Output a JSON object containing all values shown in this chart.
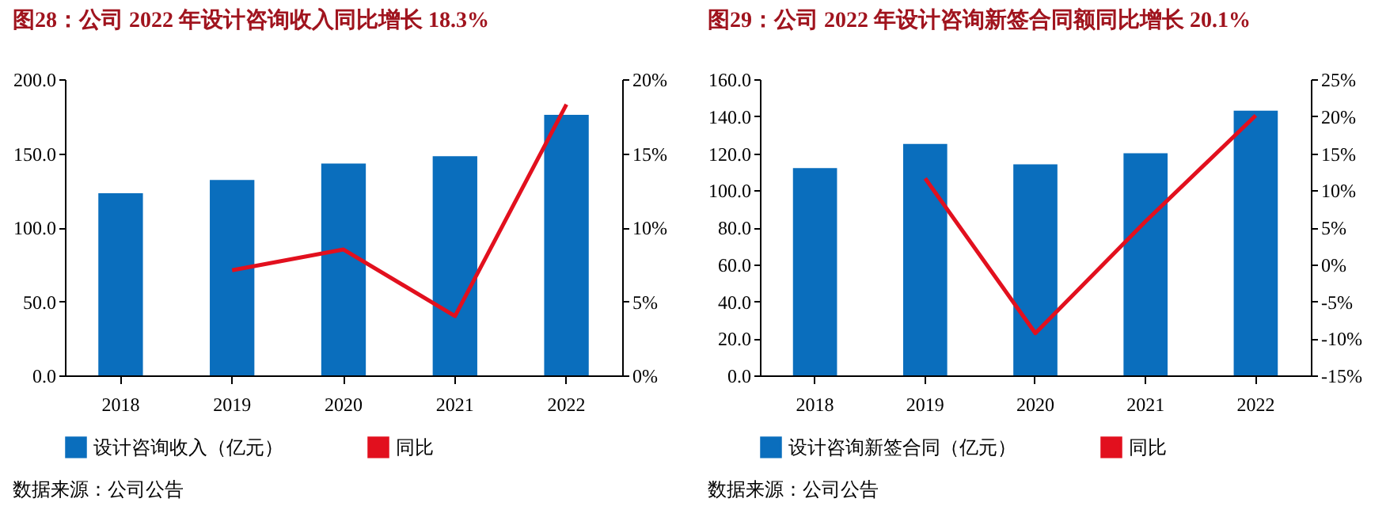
{
  "chart_data": [
    {
      "type": "bar",
      "title": "图28：公司 2022 年设计咨询收入同比增长 18.3%",
      "categories": [
        "2018",
        "2019",
        "2020",
        "2021",
        "2022"
      ],
      "series": [
        {
          "name": "设计咨询收入（亿元）",
          "color": "#0a6ebd",
          "values": [
            123,
            132,
            143,
            148,
            176
          ]
        },
        {
          "name": "同比",
          "type": "line",
          "axis": "y2",
          "color": "#e2101e",
          "values": [
            null,
            7.1,
            8.5,
            4.0,
            18.3
          ]
        }
      ],
      "ylim": [
        0,
        200
      ],
      "yticks": [
        {
          "value": 0,
          "label": "0.0"
        },
        {
          "value": 50,
          "label": "50.0"
        },
        {
          "value": 100,
          "label": "100.0"
        },
        {
          "value": 150,
          "label": "150.0"
        },
        {
          "value": 200,
          "label": "200.0"
        }
      ],
      "y2lim": [
        0,
        20
      ],
      "y2ticks": [
        {
          "value": 0,
          "label": "0%"
        },
        {
          "value": 5,
          "label": "5%"
        },
        {
          "value": 10,
          "label": "10%"
        },
        {
          "value": 15,
          "label": "15%"
        },
        {
          "value": 20,
          "label": "20%"
        }
      ],
      "legend": "bottom",
      "annotations": [
        "数据来源：公司公告"
      ]
    },
    {
      "type": "bar",
      "title": "图29：公司 2022 年设计咨询新签合同额同比增长 20.1%",
      "categories": [
        "2018",
        "2019",
        "2020",
        "2021",
        "2022"
      ],
      "series": [
        {
          "name": "设计咨询新签合同（亿元）",
          "color": "#0a6ebd",
          "values": [
            112,
            125,
            114,
            120,
            143
          ]
        },
        {
          "name": "同比",
          "type": "line",
          "axis": "y2",
          "color": "#e2101e",
          "values": [
            null,
            11.6,
            -9.3,
            5.8,
            20.1
          ]
        }
      ],
      "ylim": [
        0,
        160
      ],
      "yticks": [
        {
          "value": 0,
          "label": "0.0"
        },
        {
          "value": 20,
          "label": "20.0"
        },
        {
          "value": 40,
          "label": "40.0"
        },
        {
          "value": 60,
          "label": "60.0"
        },
        {
          "value": 80,
          "label": "80.0"
        },
        {
          "value": 100,
          "label": "100.0"
        },
        {
          "value": 120,
          "label": "120.0"
        },
        {
          "value": 140,
          "label": "140.0"
        },
        {
          "value": 160,
          "label": "160.0"
        }
      ],
      "y2lim": [
        -15,
        25
      ],
      "y2ticks": [
        {
          "value": -15,
          "label": "-15%"
        },
        {
          "value": -10,
          "label": "-10%"
        },
        {
          "value": -5,
          "label": "-5%"
        },
        {
          "value": 0,
          "label": "0%"
        },
        {
          "value": 5,
          "label": "5%"
        },
        {
          "value": 10,
          "label": "10%"
        },
        {
          "value": 15,
          "label": "15%"
        },
        {
          "value": 20,
          "label": "20%"
        },
        {
          "value": 25,
          "label": "25%"
        }
      ],
      "legend": "bottom",
      "annotations": [
        "数据来源：公司公告"
      ]
    }
  ]
}
